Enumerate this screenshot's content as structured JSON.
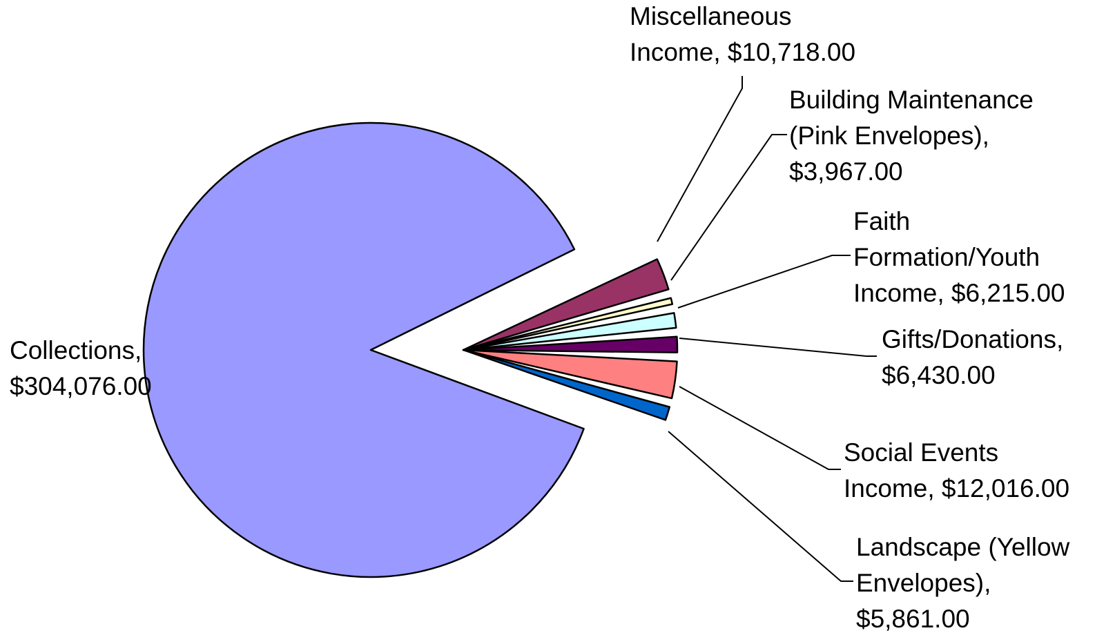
{
  "chart_data": {
    "type": "pie",
    "title": "",
    "slices": [
      {
        "label": "Collections",
        "value": 304076,
        "value_text": "$304,076.00",
        "color": "#9999FF",
        "label_lines": [
          "Collections,",
          "$304,076.00"
        ]
      },
      {
        "label": "Miscellaneous Income",
        "value": 10718,
        "value_text": "$10,718.00",
        "color": "#993366",
        "label_lines": [
          "Miscellaneous",
          "Income, $10,718.00"
        ]
      },
      {
        "label": "Building Maintenance (Pink Envelopes)",
        "value": 3967,
        "value_text": "$3,967.00",
        "color": "#FFFFCC",
        "label_lines": [
          "Building Maintenance",
          "(Pink Envelopes),",
          "$3,967.00"
        ]
      },
      {
        "label": "Faith Formation/Youth Income",
        "value": 6215,
        "value_text": "$6,215.00",
        "color": "#CCFFFF",
        "label_lines": [
          "Faith",
          "Formation/Youth",
          "Income, $6,215.00"
        ]
      },
      {
        "label": "Gifts/Donations",
        "value": 6430,
        "value_text": "$6,430.00",
        "color": "#660066",
        "label_lines": [
          "Gifts/Donations,",
          "$6,430.00"
        ]
      },
      {
        "label": "Social Events Income",
        "value": 12016,
        "value_text": "$12,016.00",
        "color": "#FF8080",
        "label_lines": [
          "Social Events",
          "Income, $12,016.00"
        ]
      },
      {
        "label": "Landscape (Yellow Envelopes)",
        "value": 5861,
        "value_text": "$5,861.00",
        "color": "#0066CC",
        "label_lines": [
          "Landscape (Yellow",
          "Envelopes),",
          "$5,861.00"
        ]
      }
    ],
    "legend": "none",
    "data_labels": "category, value"
  }
}
